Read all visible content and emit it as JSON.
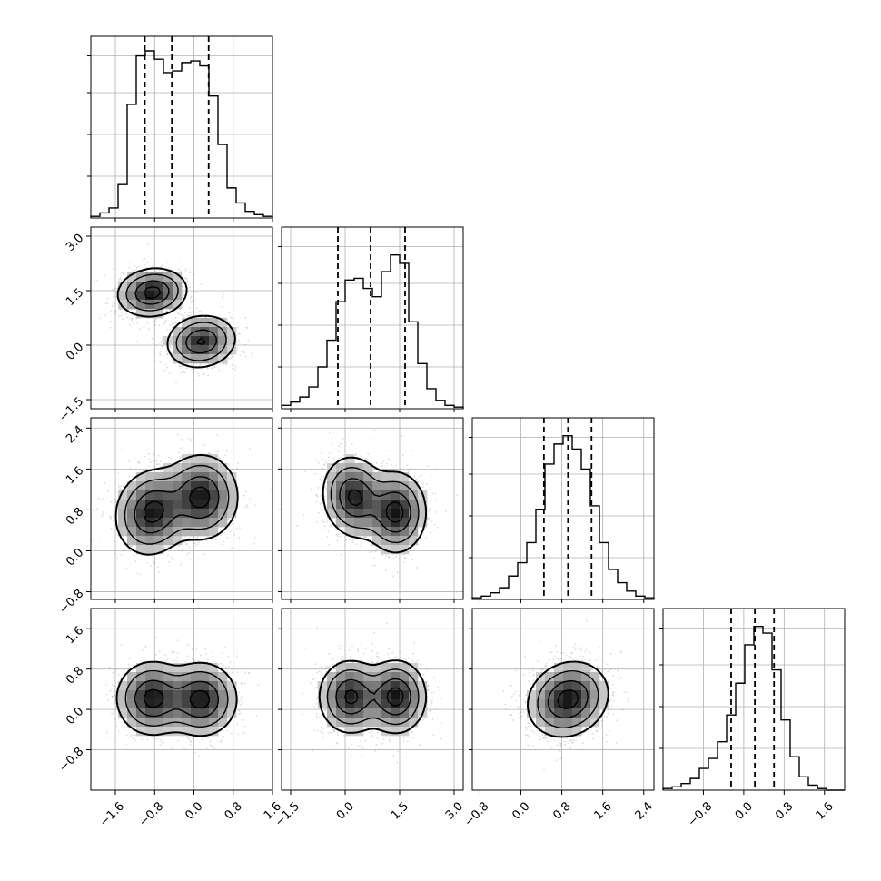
{
  "chart_data": {
    "type": "corner",
    "n_params": 4,
    "grid": true,
    "colors": {
      "line": "#000000",
      "grid": "#b0b0b0",
      "points": "#9a9a9a",
      "density": "#000000"
    },
    "ticks": [
      {
        "lim": [
          -2.1,
          1.6
        ],
        "values": [
          -1.6,
          -0.8,
          0.0,
          0.8,
          1.6
        ],
        "labels": [
          "−1.6",
          "−0.8",
          "0.0",
          "0.8",
          "1.6"
        ]
      },
      {
        "lim": [
          -1.75,
          3.25
        ],
        "values": [
          -1.5,
          0.0,
          1.5,
          3.0
        ],
        "labels": [
          "−1.5",
          "0.0",
          "1.5",
          "3.0"
        ]
      },
      {
        "lim": [
          -0.95,
          2.6
        ],
        "values": [
          -0.8,
          0.0,
          0.8,
          1.6,
          2.4
        ],
        "labels": [
          "−0.8",
          "0.0",
          "0.8",
          "1.6",
          "2.4"
        ]
      },
      {
        "lim": [
          -1.6,
          2.0
        ],
        "values": [
          -0.8,
          0.0,
          0.8,
          1.6
        ],
        "labels": [
          "−0.8",
          "0.0",
          "0.8",
          "1.6"
        ]
      }
    ],
    "quantiles": [
      [
        -1.0,
        -0.45,
        0.3
      ],
      [
        -0.2,
        0.7,
        1.65
      ],
      [
        0.45,
        0.92,
        1.38
      ],
      [
        -0.25,
        0.22,
        0.6
      ]
    ],
    "histograms": [
      {
        "bins": [
          -2.1,
          -1.915,
          -1.73,
          -1.545,
          -1.36,
          -1.175,
          -0.99,
          -0.805,
          -0.62,
          -0.435,
          -0.25,
          -0.065,
          0.12,
          0.305,
          0.49,
          0.675,
          0.86,
          1.045,
          1.23,
          1.415,
          1.6
        ],
        "counts": [
          0.01,
          0.03,
          0.06,
          0.2,
          0.68,
          0.97,
          1.0,
          0.95,
          0.87,
          0.88,
          0.93,
          0.94,
          0.91,
          0.73,
          0.44,
          0.18,
          0.09,
          0.04,
          0.02,
          0.01
        ]
      },
      {
        "bins": [
          -1.75,
          -1.5,
          -1.25,
          -1.0,
          -0.75,
          -0.5,
          -0.25,
          0.0,
          0.25,
          0.5,
          0.75,
          1.0,
          1.25,
          1.5,
          1.75,
          2.0,
          2.25,
          2.5,
          2.75,
          3.0,
          3.25
        ],
        "counts": [
          0.02,
          0.04,
          0.07,
          0.13,
          0.25,
          0.41,
          0.64,
          0.77,
          0.78,
          0.72,
          0.67,
          0.82,
          0.92,
          0.87,
          0.52,
          0.27,
          0.12,
          0.05,
          0.02,
          0.01
        ]
      },
      {
        "bins": [
          -0.95,
          -0.7725,
          -0.595,
          -0.4175,
          -0.24,
          -0.0625,
          0.115,
          0.2925,
          0.47,
          0.6475,
          0.825,
          1.0025,
          1.18,
          1.3575,
          1.535,
          1.7125,
          1.89,
          2.0675,
          2.245,
          2.4225,
          2.6
        ],
        "counts": [
          0.01,
          0.02,
          0.04,
          0.07,
          0.14,
          0.22,
          0.34,
          0.54,
          0.81,
          0.93,
          0.98,
          0.9,
          0.78,
          0.56,
          0.34,
          0.18,
          0.1,
          0.05,
          0.02,
          0.01
        ]
      },
      {
        "bins": [
          -1.6,
          -1.42,
          -1.24,
          -1.06,
          -0.88,
          -0.7,
          -0.52,
          -0.34,
          -0.16,
          0.02,
          0.2,
          0.38,
          0.56,
          0.74,
          0.92,
          1.1,
          1.28,
          1.46,
          1.64,
          1.82,
          2.0
        ],
        "counts": [
          0.01,
          0.02,
          0.04,
          0.07,
          0.13,
          0.19,
          0.29,
          0.45,
          0.64,
          0.87,
          0.98,
          0.94,
          0.72,
          0.42,
          0.2,
          0.08,
          0.03,
          0.01,
          0.0,
          0.0
        ]
      }
    ],
    "pairs": [
      {
        "row": 1,
        "col": 0,
        "components": [
          {
            "mean": [
              -0.85,
              1.45
            ],
            "sd": [
              0.34,
              0.32
            ],
            "rho": 0.1,
            "weight": 0.5
          },
          {
            "mean": [
              0.15,
              0.1
            ],
            "sd": [
              0.34,
              0.35
            ],
            "rho": 0.1,
            "weight": 0.5
          }
        ]
      },
      {
        "row": 2,
        "col": 0,
        "components": [
          {
            "mean": [
              -0.85,
              0.75
            ],
            "sd": [
              0.36,
              0.4
            ],
            "rho": 0.1,
            "weight": 0.5
          },
          {
            "mean": [
              0.15,
              1.05
            ],
            "sd": [
              0.36,
              0.4
            ],
            "rho": 0.0,
            "weight": 0.5
          }
        ]
      },
      {
        "row": 2,
        "col": 1,
        "components": [
          {
            "mean": [
              0.25,
              1.05
            ],
            "sd": [
              0.42,
              0.38
            ],
            "rho": -0.1,
            "weight": 0.5
          },
          {
            "mean": [
              1.4,
              0.75
            ],
            "sd": [
              0.4,
              0.38
            ],
            "rho": 0.0,
            "weight": 0.5
          }
        ]
      },
      {
        "row": 3,
        "col": 0,
        "components": [
          {
            "mean": [
              -0.85,
              0.22
            ],
            "sd": [
              0.35,
              0.35
            ],
            "rho": 0.0,
            "weight": 0.5
          },
          {
            "mean": [
              0.15,
              0.2
            ],
            "sd": [
              0.35,
              0.35
            ],
            "rho": 0.0,
            "weight": 0.5
          }
        ]
      },
      {
        "row": 3,
        "col": 1,
        "components": [
          {
            "mean": [
              0.15,
              0.25
            ],
            "sd": [
              0.42,
              0.35
            ],
            "rho": 0.0,
            "weight": 0.5
          },
          {
            "mean": [
              1.4,
              0.25
            ],
            "sd": [
              0.4,
              0.35
            ],
            "rho": 0.0,
            "weight": 0.5
          }
        ]
      },
      {
        "row": 3,
        "col": 2,
        "components": [
          {
            "mean": [
              0.92,
              0.2
            ],
            "sd": [
              0.38,
              0.36
            ],
            "rho": 0.15,
            "weight": 1.0
          }
        ]
      }
    ]
  }
}
